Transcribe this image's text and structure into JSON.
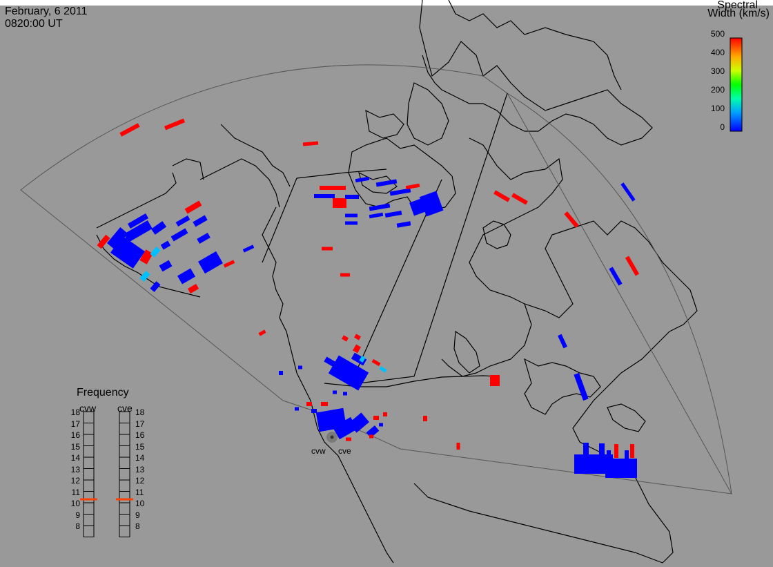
{
  "header": {
    "date": "February, 6 2011",
    "time": "0820:00 UT"
  },
  "colorbar": {
    "title_line1": "Spectral",
    "title_line2": "Width (km/s)",
    "ticks": [
      "500",
      "400",
      "300",
      "200",
      "100",
      "0"
    ],
    "colors": [
      "#ff0000",
      "#ff7f00",
      "#ffff00",
      "#00ff00",
      "#00ffff",
      "#0000ff"
    ]
  },
  "stations": {
    "west": "cvw",
    "east": "cve"
  },
  "frequency": {
    "title": "Frequency",
    "col_west": "cvw",
    "col_east": "cve",
    "scale": [
      "18",
      "17",
      "16",
      "15",
      "14",
      "13",
      "12",
      "11",
      "10",
      "9",
      "8"
    ],
    "marker_value_mhz": 10.8
  },
  "colors": {
    "background": "#999999",
    "map_lines": "#000000",
    "fov": "#555555",
    "high_width": "#ff0000",
    "low_width": "#0000ff",
    "mid_width": "#00c0ff"
  }
}
